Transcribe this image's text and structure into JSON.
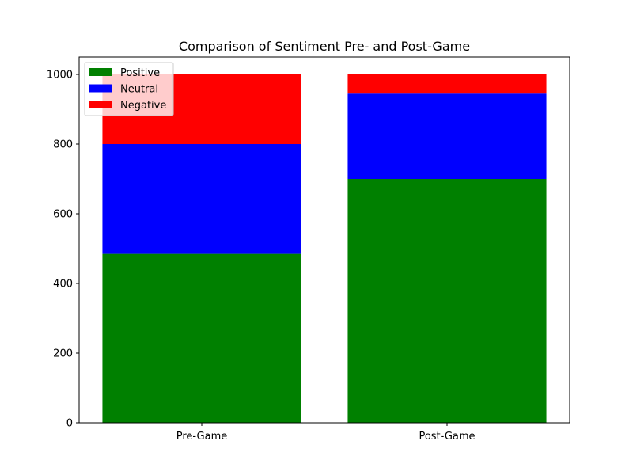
{
  "chart_data": {
    "type": "bar",
    "stacked": true,
    "title": "Comparison of Sentiment Pre- and Post-Game",
    "xlabel": "",
    "ylabel": "",
    "categories": [
      "Pre-Game",
      "Post-Game"
    ],
    "series": [
      {
        "name": "Positive",
        "color": "#008000",
        "values": [
          485,
          700
        ]
      },
      {
        "name": "Neutral",
        "color": "#0000ff",
        "values": [
          315,
          245
        ]
      },
      {
        "name": "Negative",
        "color": "#ff0000",
        "values": [
          200,
          55
        ]
      }
    ],
    "ylim": [
      0,
      1050
    ],
    "yticks": [
      0,
      200,
      400,
      600,
      800,
      1000
    ],
    "grid": false,
    "legend_position": "top-left"
  }
}
